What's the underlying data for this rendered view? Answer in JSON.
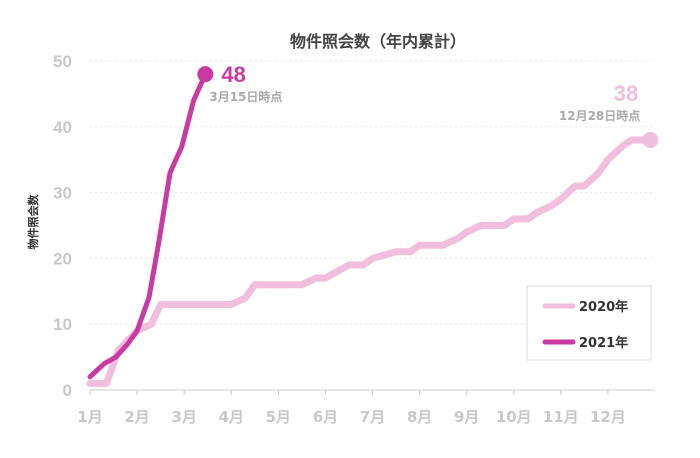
{
  "chart_data": {
    "type": "line",
    "title": "物件照会数（年内累計）",
    "ylabel": "物件照会数",
    "xlabel": "",
    "x_ticks": [
      "1月",
      "2月",
      "3月",
      "4月",
      "5月",
      "6月",
      "7月",
      "8月",
      "9月",
      "10月",
      "11月",
      "12月"
    ],
    "xlim": [
      1,
      13
    ],
    "ylim": [
      0,
      50
    ],
    "y_ticks": [
      0,
      10,
      20,
      30,
      40,
      50
    ],
    "grid": true,
    "legend_position": "bottom-right",
    "series": [
      {
        "name": "2020年",
        "color": "#f2bedd",
        "x": [
          1.0,
          1.35,
          1.6,
          2.0,
          2.3,
          2.5,
          3.0,
          3.5,
          4.0,
          4.3,
          4.5,
          5.0,
          5.3,
          5.5,
          5.8,
          6.0,
          6.5,
          6.8,
          7.0,
          7.5,
          7.8,
          8.0,
          8.5,
          8.8,
          9.0,
          9.3,
          9.5,
          9.8,
          10.0,
          10.3,
          10.5,
          10.8,
          11.0,
          11.3,
          11.5,
          11.8,
          12.0,
          12.3,
          12.5,
          12.9
        ],
        "y": [
          1,
          1,
          6,
          9,
          10,
          13,
          13,
          13,
          13,
          14,
          16,
          16,
          16,
          16,
          17,
          17,
          19,
          19,
          20,
          21,
          21,
          22,
          22,
          23,
          24,
          25,
          25,
          25,
          26,
          26,
          27,
          28,
          29,
          31,
          31,
          33,
          35,
          37,
          38,
          38
        ]
      },
      {
        "name": "2021年",
        "color": "#c93ba3",
        "x": [
          1.0,
          1.3,
          1.55,
          1.8,
          2.0,
          2.25,
          2.45,
          2.7,
          2.95,
          3.2,
          3.45
        ],
        "y": [
          2,
          4,
          5,
          7,
          9,
          14,
          22,
          33,
          37,
          44,
          48
        ]
      }
    ],
    "annotations": [
      {
        "series": "2021年",
        "value": "48",
        "date": "3月15日時点",
        "x": 3.45,
        "y": 48
      },
      {
        "series": "2020年",
        "value": "38",
        "date": "12月28日時点",
        "x": 12.9,
        "y": 38
      }
    ]
  }
}
